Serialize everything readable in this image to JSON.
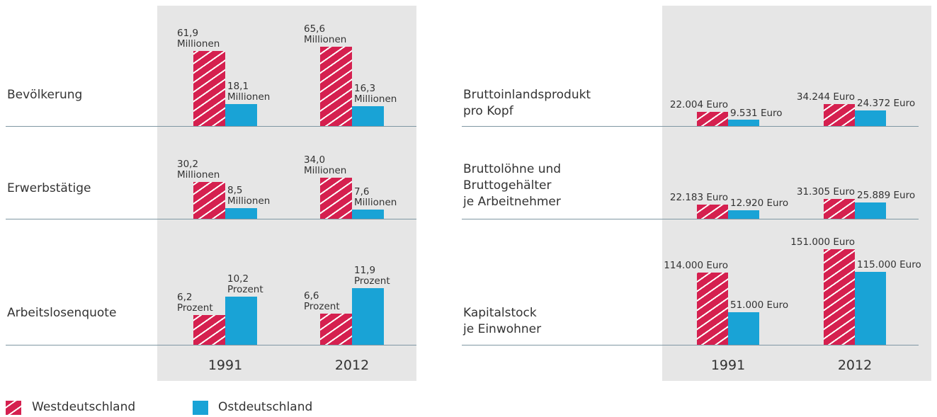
{
  "legend": [
    {
      "name": "Westdeutschland",
      "color": "#d5204f",
      "pattern": "hatched"
    },
    {
      "name": "Ostdeutschland",
      "color": "#19a3d6"
    }
  ],
  "chart_data": [
    {
      "type": "bar",
      "categories": [
        "1991",
        "2012"
      ],
      "rows": [
        {
          "title": "Bevölkerung",
          "series": [
            {
              "values": [
                61.9,
                65.6
              ],
              "value_labels": [
                "61,9\nMillionen",
                "65,6\nMillionen"
              ]
            },
            {
              "values": [
                18.1,
                16.3
              ],
              "value_labels": [
                "18,1\nMillionen",
                "16,3\nMillionen"
              ]
            }
          ]
        },
        {
          "title": "Erwerbstätige",
          "series": [
            {
              "values": [
                30.2,
                34.0
              ],
              "value_labels": [
                "30,2\nMillionen",
                "34,0\nMillionen"
              ]
            },
            {
              "values": [
                8.5,
                7.6
              ],
              "value_labels": [
                "8,5\nMillionen",
                "7,6\nMillionen"
              ]
            }
          ]
        },
        {
          "title": "Arbeitslosenquote",
          "series": [
            {
              "values": [
                6.2,
                6.6
              ],
              "value_labels": [
                "6,2\nProzent",
                "6,6\nProzent"
              ]
            },
            {
              "values": [
                10.2,
                11.9
              ],
              "value_labels": [
                "10,2\nProzent",
                "11,9\nProzent"
              ]
            }
          ]
        }
      ]
    },
    {
      "type": "bar",
      "categories": [
        "1991",
        "2012"
      ],
      "rows": [
        {
          "title": "Bruttoinlandsprodukt\npro Kopf",
          "series": [
            {
              "values": [
                22004,
                34244
              ],
              "value_labels": [
                "22.004 Euro",
                "34.244 Euro"
              ]
            },
            {
              "values": [
                9531,
                24372
              ],
              "value_labels": [
                "9.531 Euro",
                "24.372 Euro"
              ]
            }
          ]
        },
        {
          "title": "Bruttolöhne und\nBruttogehälter\nje Arbeitnehmer",
          "series": [
            {
              "values": [
                22183,
                31305
              ],
              "value_labels": [
                "22.183 Euro",
                "31.305 Euro"
              ]
            },
            {
              "values": [
                12920,
                25889
              ],
              "value_labels": [
                "12.920 Euro",
                "25.889 Euro"
              ]
            }
          ]
        },
        {
          "title": "Kapitalstock\nje Einwohner",
          "series": [
            {
              "values": [
                114000,
                151000
              ],
              "value_labels": [
                "114.000 Euro",
                "151.000 Euro"
              ]
            },
            {
              "values": [
                51000,
                115000
              ],
              "value_labels": [
                "51.000 Euro",
                "115.000 Euro"
              ]
            }
          ]
        }
      ]
    }
  ]
}
